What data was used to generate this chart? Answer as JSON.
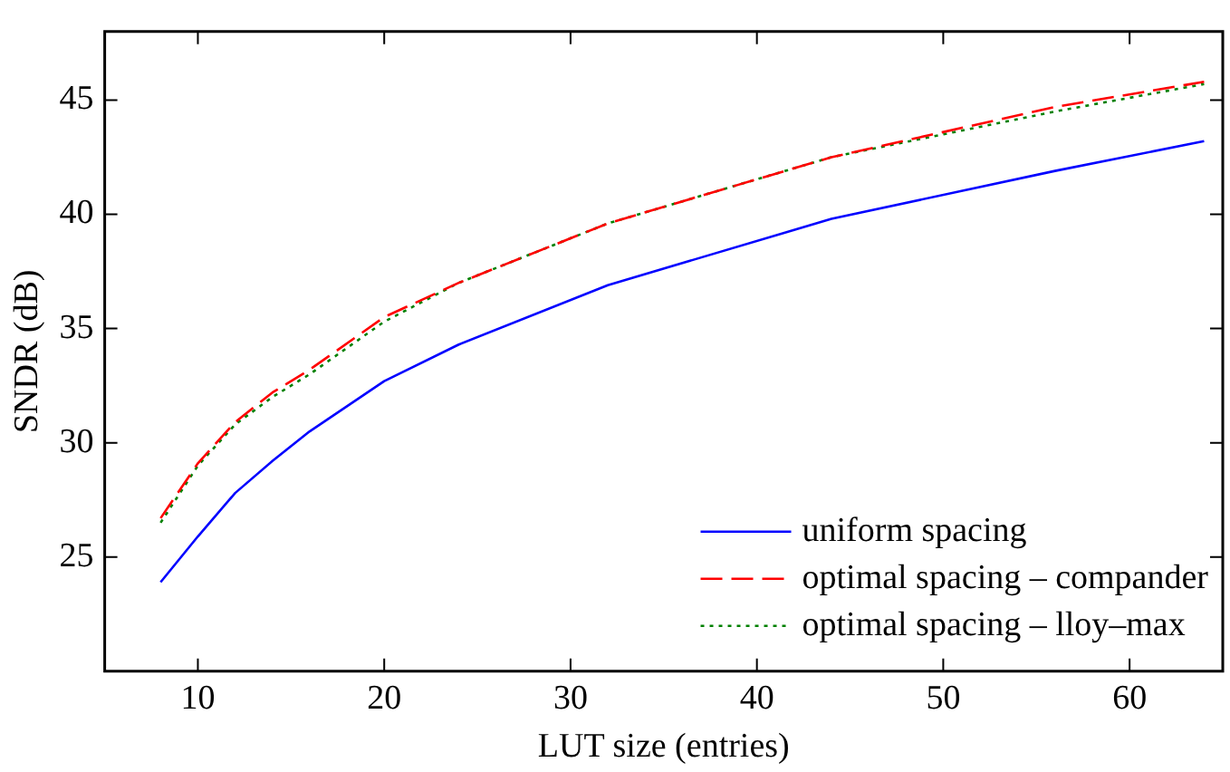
{
  "chart_data": {
    "type": "line",
    "xlabel": "LUT size (entries)",
    "ylabel": "SNDR (dB)",
    "xlim": [
      5,
      65
    ],
    "xticks": [
      10,
      20,
      30,
      40,
      50,
      60
    ],
    "ylim": [
      20,
      48
    ],
    "yticks": [
      25,
      30,
      35,
      40,
      45
    ],
    "x": [
      8,
      10,
      12,
      14,
      16,
      20,
      24,
      32,
      44,
      56,
      64
    ],
    "series": [
      {
        "name": "uniform spacing",
        "color": "#0000ff",
        "line_style": "solid",
        "values": [
          23.9,
          25.9,
          27.8,
          29.2,
          30.5,
          32.7,
          34.3,
          36.9,
          39.8,
          41.9,
          43.2
        ]
      },
      {
        "name": "optimal spacing – compander",
        "color": "#ff0000",
        "line_style": "dashed",
        "values": [
          26.7,
          29.1,
          30.9,
          32.2,
          33.2,
          35.5,
          37.0,
          39.6,
          42.5,
          44.7,
          45.8
        ]
      },
      {
        "name": "optimal spacing – lloy–max",
        "color": "#008000",
        "line_style": "dotted",
        "values": [
          26.5,
          29.0,
          30.8,
          32.0,
          33.0,
          35.3,
          37.0,
          39.6,
          42.5,
          44.5,
          45.7
        ]
      }
    ],
    "grid": false,
    "legend": "bottom right",
    "marker": "none"
  }
}
